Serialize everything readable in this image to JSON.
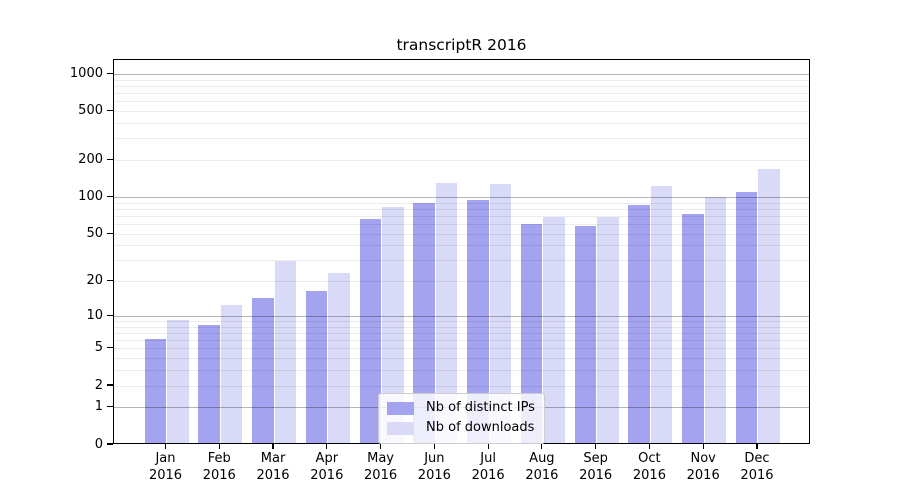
{
  "chart_data": {
    "type": "bar",
    "title": "transcriptR 2016",
    "months": [
      "Jan",
      "Feb",
      "Mar",
      "Apr",
      "May",
      "Jun",
      "Jul",
      "Aug",
      "Sep",
      "Oct",
      "Nov",
      "Dec"
    ],
    "year": "2016",
    "categories": [
      "Jan 2016",
      "Feb 2016",
      "Mar 2016",
      "Apr 2016",
      "May 2016",
      "Jun 2016",
      "Jul 2016",
      "Aug 2016",
      "Sep 2016",
      "Oct 2016",
      "Nov 2016",
      "Dec 2016"
    ],
    "series": [
      {
        "name": "Nb of distinct IPs",
        "color": "#a3a3ef",
        "values": [
          6,
          8,
          14,
          16,
          64,
          86,
          91,
          58,
          56,
          83,
          70,
          107
        ]
      },
      {
        "name": "Nb of downloads",
        "color": "#d9d9f8",
        "values": [
          9,
          12,
          29,
          23,
          80,
          127,
          123,
          66,
          66,
          119,
          97,
          163
        ]
      }
    ],
    "xlabel": "",
    "ylabel": "",
    "y_scale": "log10(1+x)",
    "y_ticks": [
      0,
      1,
      2,
      5,
      10,
      20,
      50,
      100,
      200,
      500,
      1000
    ],
    "y_minor_gridlines": [
      2,
      3,
      4,
      5,
      6,
      7,
      8,
      9,
      20,
      30,
      40,
      50,
      60,
      70,
      80,
      90,
      200,
      300,
      400,
      500,
      600,
      700,
      800,
      900
    ],
    "y_major_gridlines": [
      1,
      10,
      100,
      1000
    ],
    "ylim": [
      0,
      1310
    ],
    "grid": "horizontal major+minor, drawn through bars",
    "legend_position": "inside lower-center",
    "colors": {
      "grid_major": "#b5b5b5",
      "grid_minor": "#ebebeb",
      "axis": "#000000",
      "legend_border": "#cccccc",
      "background": "#ffffff"
    }
  }
}
